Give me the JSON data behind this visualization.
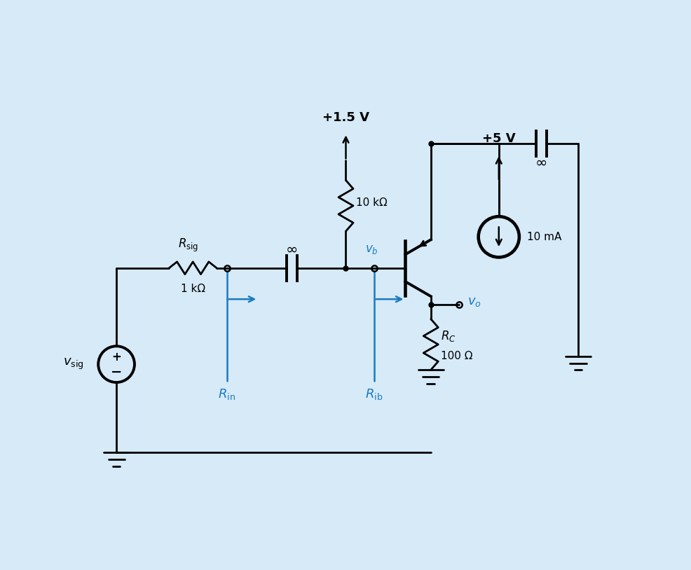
{
  "bg_color": "#d6eaf8",
  "line_color": "#000000",
  "blue_color": "#1a7abf",
  "lw": 2.0,
  "tlw": 2.8,
  "fig_w": 9.87,
  "fig_h": 8.14,
  "dpi": 100,
  "xlim": [
    0,
    10
  ],
  "ylim": [
    0,
    10
  ],
  "rsig_label": "R_\\mathrm{sig}",
  "rsig_val": "1 kΩ",
  "r10k_val": "10 kΩ",
  "rc_label": "R_C",
  "rc_val": "100 Ω",
  "v15_label": "+1.5 V",
  "v5_label": "+5 V",
  "i10ma_label": "10 mA",
  "vb_label": "v_b",
  "vo_label": "v_o",
  "vsig_label": "v_\\mathrm{sig}",
  "rin_label": "R_\\mathrm{in}",
  "rib_label": "R_\\mathrm{ib}",
  "inf": "∞"
}
